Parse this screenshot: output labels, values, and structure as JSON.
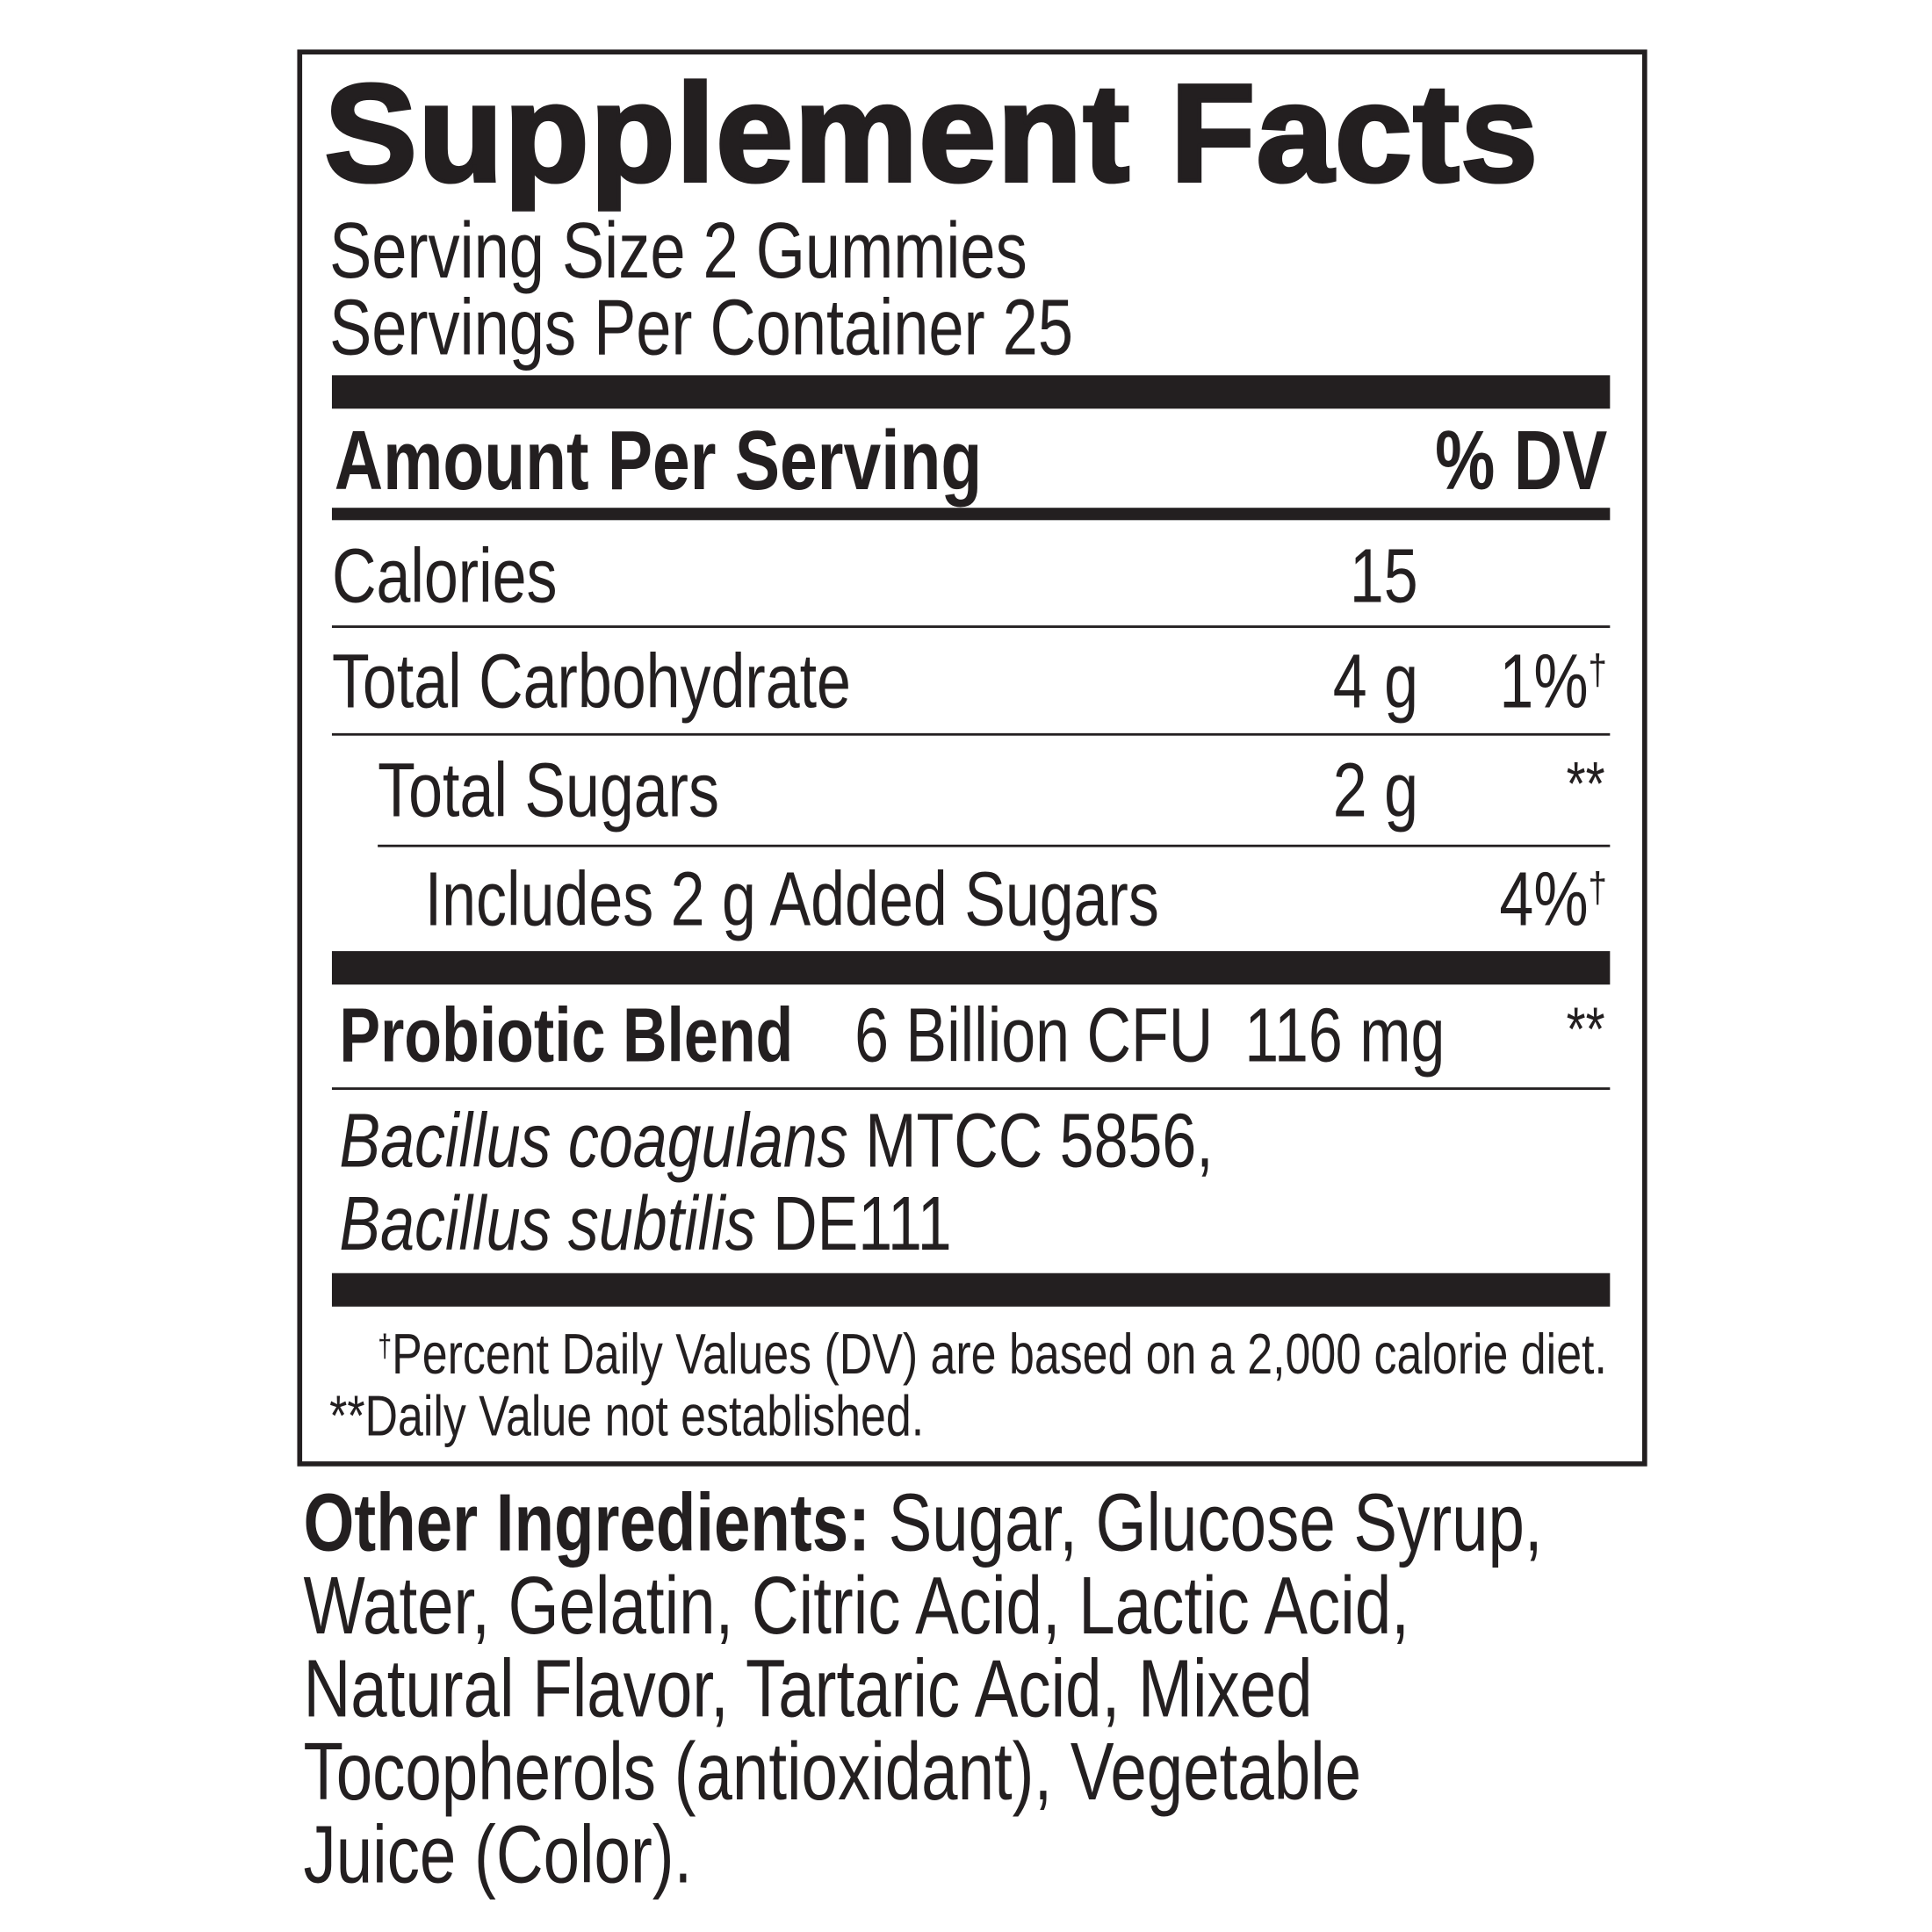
{
  "label": {
    "title": "Supplement Facts",
    "serving_size": "Serving Size 2 Gummies",
    "servings_per_container": "Servings Per Container 25",
    "header": {
      "amount": "Amount Per Serving",
      "dv": "% DV"
    },
    "rows": [
      {
        "name": "Calories",
        "amount": "15",
        "dv": ""
      },
      {
        "name": "Total Carbohydrate",
        "amount": "4 g",
        "dv": "1%",
        "dv_mark": "†"
      },
      {
        "name": "Total Sugars",
        "amount": "2 g",
        "dv": "**"
      },
      {
        "name": "Includes 2 g Added Sugars",
        "amount": "",
        "dv": "4%",
        "dv_mark": "†"
      }
    ],
    "blend": {
      "name": "Probiotic Blend",
      "cfu": "6 Billion CFU",
      "amount": "116 mg",
      "dv": "**"
    },
    "strains": [
      {
        "species": "Bacillus coagulans",
        "strain": " MTCC 5856,"
      },
      {
        "species": "Bacillus subtilis",
        "strain": " DE111"
      }
    ],
    "footnotes": {
      "dagger": "†",
      "percent": "Percent Daily Values (DV) are based on a 2,000 calorie diet.",
      "not_established": "**Daily Value not established."
    }
  },
  "other_ingredients": {
    "heading": "Other Ingredients:",
    "lines": [
      " Sugar, Glucose Syrup,",
      "Water, Gelatin, Citric Acid, Lactic Acid,",
      "Natural Flavor, Tartaric Acid, Mixed",
      "Tocopherols (antioxidant), Vegetable",
      "Juice (Color)."
    ]
  },
  "colors": {
    "ink": "#231f20",
    "background": "#ffffff"
  }
}
